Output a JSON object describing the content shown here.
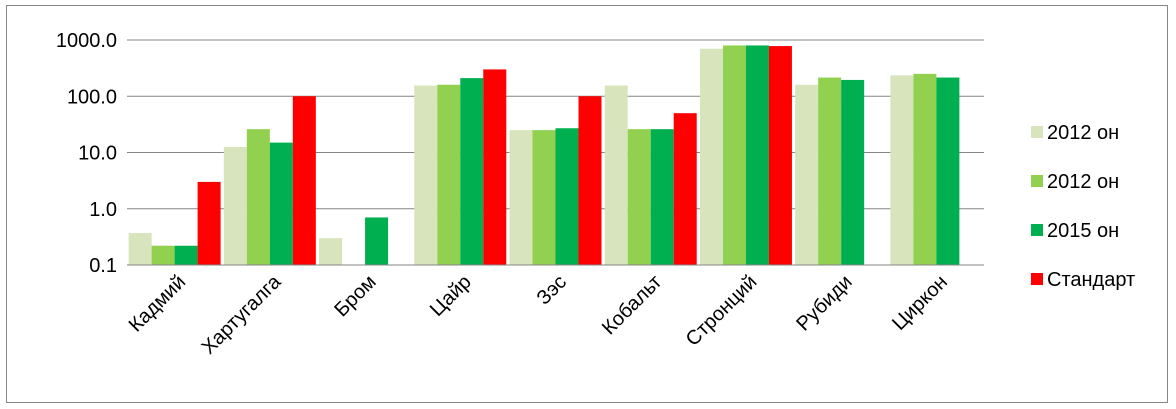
{
  "chart_data": {
    "type": "bar",
    "yscale": "log",
    "ylim": [
      0.1,
      1000
    ],
    "grid": true,
    "legend_position": "right",
    "yticks": [
      "1000.0",
      "100.0",
      "10.0",
      "1.0",
      "0.1"
    ],
    "categories": [
      "Кадмий",
      "Хартугалга",
      "Бром",
      "Цайр",
      "Зэс",
      "Кобальт",
      "Стронций",
      "Рубиди",
      "Циркон"
    ],
    "series": [
      {
        "name": "2012 он",
        "color": "#d8e4bc",
        "values": [
          0.37,
          12.5,
          0.3,
          155,
          25,
          155,
          700,
          160,
          235
        ]
      },
      {
        "name": "2012 он",
        "color": "#92d050",
        "values": [
          0.22,
          26,
          null,
          160,
          25,
          26,
          800,
          215,
          250
        ]
      },
      {
        "name": "2015 он",
        "color": "#00b050",
        "values": [
          0.22,
          15,
          0.7,
          210,
          27,
          26,
          800,
          195,
          215
        ]
      },
      {
        "name": "Стандарт",
        "color": "#ff0000",
        "values": [
          3,
          100,
          null,
          300,
          100,
          50,
          780,
          null,
          null
        ]
      }
    ]
  }
}
